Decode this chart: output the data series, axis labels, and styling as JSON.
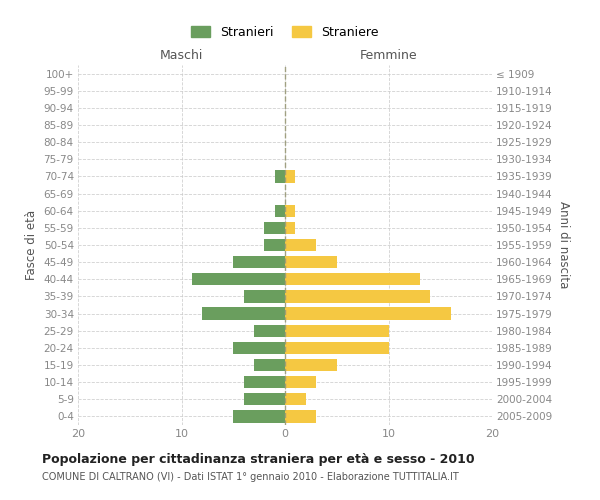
{
  "age_groups": [
    "0-4",
    "5-9",
    "10-14",
    "15-19",
    "20-24",
    "25-29",
    "30-34",
    "35-39",
    "40-44",
    "45-49",
    "50-54",
    "55-59",
    "60-64",
    "65-69",
    "70-74",
    "75-79",
    "80-84",
    "85-89",
    "90-94",
    "95-99",
    "100+"
  ],
  "birth_years": [
    "2005-2009",
    "2000-2004",
    "1995-1999",
    "1990-1994",
    "1985-1989",
    "1980-1984",
    "1975-1979",
    "1970-1974",
    "1965-1969",
    "1960-1964",
    "1955-1959",
    "1950-1954",
    "1945-1949",
    "1940-1944",
    "1935-1939",
    "1930-1934",
    "1925-1929",
    "1920-1924",
    "1915-1919",
    "1910-1914",
    "≤ 1909"
  ],
  "maschi": [
    5,
    4,
    4,
    3,
    5,
    3,
    8,
    4,
    9,
    5,
    2,
    2,
    1,
    0,
    1,
    0,
    0,
    0,
    0,
    0,
    0
  ],
  "femmine": [
    3,
    2,
    3,
    5,
    10,
    10,
    16,
    14,
    13,
    5,
    3,
    1,
    1,
    0,
    1,
    0,
    0,
    0,
    0,
    0,
    0
  ],
  "color_maschi": "#6a9e5e",
  "color_femmine": "#f5c842",
  "title": "Popolazione per cittadinanza straniera per età e sesso - 2010",
  "subtitle": "COMUNE DI CALTRANO (VI) - Dati ISTAT 1° gennaio 2010 - Elaborazione TUTTITALIA.IT",
  "label_left": "Maschi",
  "label_right": "Femmine",
  "ylabel_left": "Fasce di età",
  "ylabel_right": "Anni di nascita",
  "legend_maschi": "Stranieri",
  "legend_femmine": "Straniere",
  "xlim": 20,
  "background_color": "#ffffff",
  "grid_color": "#cccccc"
}
